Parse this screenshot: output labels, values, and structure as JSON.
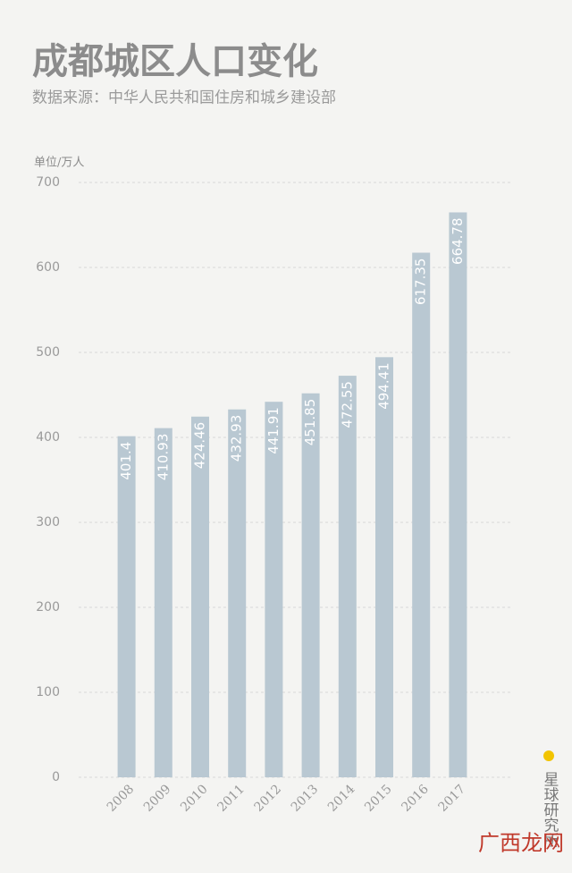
{
  "chart_data": {
    "type": "bar",
    "title": "成都城区人口变化",
    "subtitle": "数据来源：中华人民共和国住房和城乡建设部",
    "y_label": "单位/万人",
    "categories": [
      "2008",
      "2009",
      "2010",
      "2011",
      "2012",
      "2013",
      "2014",
      "2015",
      "2016",
      "2017"
    ],
    "values": [
      401.4,
      410.93,
      424.46,
      432.93,
      441.91,
      451.85,
      472.55,
      494.41,
      617.35,
      664.78
    ],
    "color": "#b9c8d2",
    "ylim": [
      0,
      700
    ],
    "yticks": [
      0,
      100,
      200,
      300,
      400,
      500,
      600,
      700
    ],
    "grid": true
  },
  "brand": "星球研究所",
  "watermark": "广西龙网"
}
